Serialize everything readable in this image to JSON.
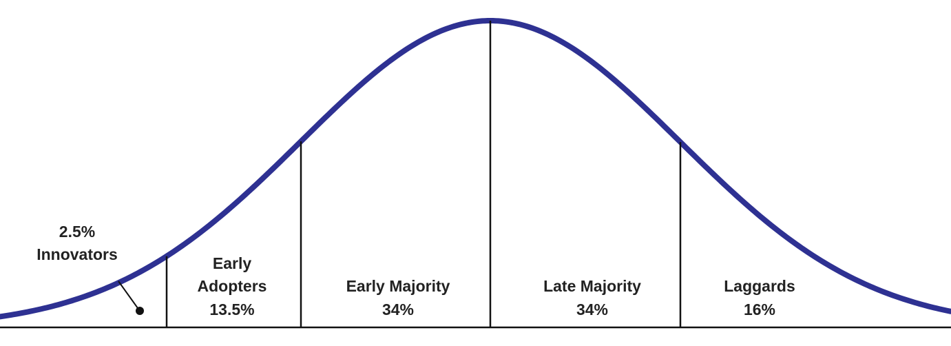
{
  "colors": {
    "curve": "#2e3192",
    "lines": "#111111",
    "text": "#222222"
  },
  "segments": [
    {
      "name": "Innovators",
      "percent_label": "2.5%",
      "label": "Innovators",
      "share": 2.5
    },
    {
      "name": "Early Adopters",
      "label_line1": "Early",
      "label_line2": "Adopters",
      "percent_label": "13.5%",
      "share": 13.5
    },
    {
      "name": "Early Majority",
      "label": "Early Majority",
      "percent_label": "34%",
      "share": 34
    },
    {
      "name": "Late Majority",
      "label": "Late Majority",
      "percent_label": "34%",
      "share": 34
    },
    {
      "name": "Laggards",
      "label": "Laggards",
      "percent_label": "16%",
      "share": 16
    }
  ]
}
